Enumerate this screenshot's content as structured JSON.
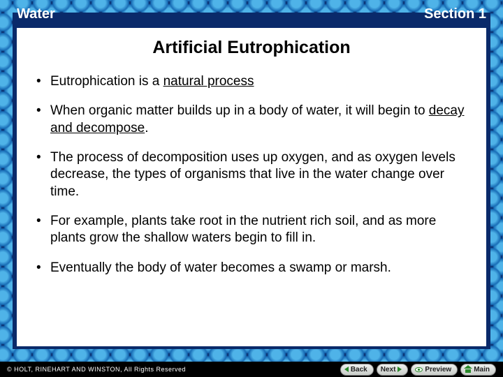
{
  "colors": {
    "slide_bg": "#0a2a6a",
    "content_bg": "#ffffff",
    "text": "#000000",
    "header_text": "#ffffff",
    "footer_bg": "#000000",
    "button_icon": "#2a8a2a",
    "bubble_light": "#4fb3e8",
    "bubble_dark": "#1a6fb8"
  },
  "typography": {
    "header_fontsize": 20,
    "title_fontsize": 25,
    "body_fontsize": 19,
    "footer_fontsize": 9,
    "button_fontsize": 10
  },
  "header": {
    "left": "Water",
    "right": "Section 1"
  },
  "title": "Artificial Eutrophication",
  "bullets": [
    {
      "pre": "Eutrophication is a ",
      "underlined": "natural process",
      "post": ""
    },
    {
      "pre": "When organic matter builds up in a body of water, it will begin to ",
      "underlined": "decay and decompose",
      "post": "."
    },
    {
      "pre": "The process of decomposition uses up oxygen, and as oxygen levels decrease, the types of organisms that live in the water change over time.",
      "underlined": "",
      "post": ""
    },
    {
      "pre": "For example, plants take root in the nutrient rich soil, and as more plants grow the shallow waters begin to fill in.",
      "underlined": "",
      "post": ""
    },
    {
      "pre": "Eventually the body of water becomes a swamp or marsh.",
      "underlined": "",
      "post": ""
    }
  ],
  "footer": {
    "copyright": "© HOLT, RINEHART AND WINSTON, All Rights Reserved"
  },
  "nav": {
    "back": "Back",
    "next": "Next",
    "preview": "Preview",
    "main": "Main"
  }
}
